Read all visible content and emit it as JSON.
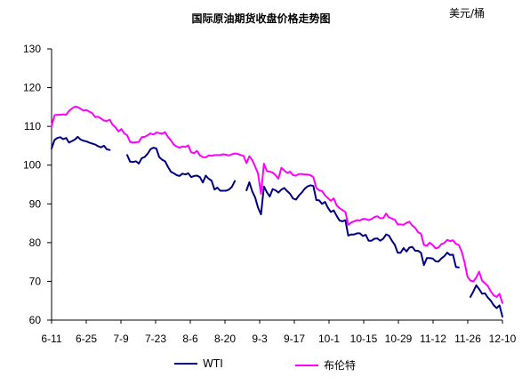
{
  "chart_data": {
    "type": "line",
    "title": "国际原油期货收盘价格走势图",
    "unit_label": "美元/桶",
    "ylim": [
      60,
      130
    ],
    "yticks": [
      60,
      70,
      80,
      90,
      100,
      110,
      120,
      130
    ],
    "x_tick_labels": [
      "6-11",
      "6-25",
      "7-9",
      "7-23",
      "8-6",
      "8-20",
      "9-3",
      "9-17",
      "10-1",
      "10-15",
      "10-29",
      "11-12",
      "11-26",
      "12-10"
    ],
    "legend_position": "bottom",
    "grid": false,
    "colors": {
      "wti": "#000080",
      "brent": "#ff00ff"
    },
    "series": [
      {
        "name": "WTI",
        "key": "wti",
        "points": [
          [
            0,
            104.3
          ],
          [
            1,
            106.5
          ],
          [
            2,
            107.0
          ],
          [
            3,
            107.2
          ],
          [
            4,
            106.7
          ],
          [
            5,
            107.0
          ],
          [
            6,
            105.8
          ],
          [
            8,
            106.6
          ],
          [
            9,
            107.3
          ],
          [
            10,
            106.6
          ],
          [
            11,
            106.3
          ],
          [
            12,
            106.1
          ],
          [
            13,
            105.8
          ],
          [
            15,
            105.3
          ],
          [
            16,
            104.9
          ],
          [
            17,
            104.6
          ],
          [
            18,
            105.0
          ],
          [
            19,
            104.1
          ],
          [
            20,
            103.9
          ],
          null,
          [
            26,
            102.6
          ],
          [
            27,
            100.9
          ],
          [
            28,
            100.8
          ],
          [
            29,
            101.0
          ],
          [
            30,
            100.4
          ],
          [
            31,
            101.8
          ],
          [
            32,
            102.1
          ],
          [
            33,
            102.9
          ],
          [
            34,
            104.1
          ],
          [
            35,
            104.5
          ],
          [
            36,
            104.3
          ],
          [
            37,
            102.1
          ],
          [
            38,
            101.4
          ],
          [
            39,
            101.0
          ],
          [
            40,
            99.6
          ],
          [
            41,
            98.3
          ],
          [
            42,
            97.9
          ],
          [
            43,
            97.4
          ],
          [
            44,
            97.2
          ],
          [
            45,
            97.8
          ],
          [
            46,
            97.6
          ],
          [
            47,
            97.9
          ],
          [
            48,
            96.9
          ],
          [
            49,
            97.2
          ],
          [
            50,
            97.3
          ],
          [
            51,
            96.9
          ],
          [
            52,
            95.5
          ],
          [
            53,
            97.3
          ],
          [
            54,
            96.5
          ],
          [
            55,
            96.0
          ],
          [
            56,
            93.7
          ],
          [
            57,
            94.2
          ],
          [
            58,
            93.4
          ],
          [
            59,
            93.4
          ],
          [
            60,
            93.4
          ],
          [
            61,
            93.7
          ],
          [
            62,
            94.4
          ],
          [
            63,
            95.9
          ],
          null,
          [
            67,
            93.5
          ],
          [
            68,
            95.6
          ],
          [
            69,
            93.2
          ],
          [
            70,
            91.6
          ],
          [
            71,
            89.0
          ],
          [
            72,
            87.3
          ],
          [
            73,
            94.5
          ],
          [
            74,
            93.0
          ],
          [
            75,
            91.9
          ],
          [
            76,
            93.8
          ],
          [
            77,
            93.5
          ],
          [
            78,
            92.9
          ],
          [
            79,
            93.7
          ],
          [
            80,
            94.1
          ],
          [
            81,
            93.3
          ],
          [
            82,
            92.6
          ],
          [
            83,
            91.4
          ],
          [
            84,
            91.1
          ],
          [
            85,
            92.1
          ],
          [
            86,
            92.9
          ],
          [
            87,
            93.9
          ],
          [
            88,
            94.5
          ],
          [
            89,
            94.8
          ],
          [
            90,
            94.6
          ],
          [
            91,
            91.0
          ],
          [
            92,
            90.9
          ],
          [
            93,
            90.0
          ],
          [
            94,
            90.5
          ],
          [
            95,
            89.0
          ],
          [
            96,
            87.9
          ],
          [
            97,
            88.3
          ],
          [
            98,
            86.9
          ],
          [
            99,
            85.7
          ],
          [
            100,
            85.5
          ],
          [
            101,
            85.8
          ],
          [
            102,
            81.8
          ],
          [
            103,
            82.1
          ],
          [
            104,
            82.1
          ],
          [
            105,
            82.4
          ],
          [
            106,
            82.4
          ],
          [
            107,
            81.7
          ],
          [
            108,
            82.0
          ],
          [
            109,
            80.5
          ],
          [
            110,
            80.5
          ],
          [
            111,
            81.0
          ],
          [
            112,
            81.1
          ],
          [
            113,
            80.5
          ],
          [
            114,
            81.0
          ],
          [
            115,
            82.1
          ],
          [
            116,
            81.8
          ],
          [
            117,
            80.5
          ],
          [
            118,
            79.4
          ],
          [
            119,
            77.4
          ],
          [
            120,
            77.4
          ],
          [
            121,
            78.6
          ],
          [
            122,
            77.7
          ],
          [
            123,
            78.7
          ],
          [
            124,
            78.9
          ],
          [
            125,
            77.9
          ],
          [
            126,
            77.9
          ],
          [
            127,
            77.4
          ],
          [
            128,
            74.2
          ],
          [
            129,
            76.0
          ],
          [
            130,
            76.0
          ],
          [
            131,
            75.9
          ],
          [
            132,
            75.2
          ],
          [
            133,
            75.1
          ],
          [
            134,
            75.9
          ],
          [
            135,
            76.5
          ],
          [
            136,
            77.4
          ],
          [
            137,
            76.8
          ],
          [
            138,
            76.9
          ],
          [
            139,
            73.7
          ],
          [
            140,
            73.6
          ],
          null,
          [
            144,
            66.0
          ],
          [
            145,
            67.4
          ],
          [
            146,
            69.0
          ],
          [
            147,
            68.0
          ],
          [
            148,
            66.8
          ],
          [
            149,
            66.9
          ],
          [
            150,
            65.8
          ],
          [
            151,
            65.0
          ],
          [
            152,
            63.8
          ],
          [
            153,
            63.1
          ],
          [
            154,
            63.8
          ],
          [
            155,
            60.9
          ]
        ]
      },
      {
        "name": "布伦特",
        "key": "brent",
        "points": [
          [
            0,
            110.0
          ],
          [
            1,
            112.9
          ],
          [
            2,
            113.0
          ],
          [
            3,
            113.0
          ],
          [
            4,
            113.1
          ],
          [
            5,
            113.0
          ],
          [
            6,
            114.0
          ],
          [
            7,
            114.6
          ],
          [
            8,
            115.1
          ],
          [
            9,
            115.0
          ],
          [
            10,
            114.5
          ],
          [
            11,
            114.1
          ],
          [
            12,
            114.2
          ],
          [
            13,
            113.8
          ],
          [
            14,
            113.4
          ],
          [
            15,
            112.4
          ],
          [
            16,
            112.5
          ],
          [
            17,
            112.0
          ],
          [
            18,
            111.5
          ],
          [
            19,
            111.4
          ],
          [
            20,
            111.7
          ],
          [
            21,
            110.4
          ],
          [
            22,
            109.7
          ],
          [
            23,
            108.7
          ],
          [
            24,
            109.3
          ],
          [
            25,
            108.2
          ],
          [
            26,
            107.7
          ],
          [
            27,
            106.0
          ],
          [
            28,
            105.8
          ],
          [
            29,
            105.9
          ],
          [
            30,
            106.0
          ],
          [
            31,
            107.2
          ],
          [
            32,
            107.3
          ],
          [
            33,
            107.7
          ],
          [
            34,
            108.2
          ],
          [
            35,
            107.9
          ],
          [
            36,
            108.4
          ],
          [
            37,
            108.3
          ],
          [
            38,
            108.1
          ],
          [
            39,
            108.5
          ],
          [
            40,
            107.3
          ],
          [
            41,
            106.4
          ],
          [
            42,
            105.3
          ],
          [
            43,
            104.8
          ],
          [
            44,
            104.5
          ],
          [
            45,
            104.8
          ],
          [
            46,
            104.7
          ],
          [
            47,
            105.1
          ],
          [
            48,
            103.3
          ],
          [
            49,
            103.1
          ],
          [
            50,
            103.7
          ],
          [
            51,
            102.5
          ],
          [
            52,
            102.1
          ],
          [
            53,
            102.0
          ],
          [
            54,
            102.5
          ],
          [
            55,
            102.4
          ],
          [
            56,
            102.6
          ],
          [
            57,
            102.6
          ],
          [
            58,
            102.6
          ],
          [
            59,
            102.8
          ],
          [
            60,
            102.7
          ],
          [
            61,
            102.5
          ],
          [
            62,
            102.8
          ],
          [
            63,
            103.0
          ],
          [
            64,
            102.9
          ],
          [
            65,
            102.6
          ],
          [
            66,
            102.4
          ],
          [
            67,
            100.5
          ],
          [
            68,
            102.3
          ],
          [
            69,
            101.3
          ],
          [
            70,
            99.6
          ],
          [
            71,
            97.8
          ],
          [
            72,
            92.6
          ],
          [
            73,
            100.4
          ],
          [
            74,
            98.5
          ],
          [
            75,
            98.3
          ],
          [
            76,
            98.1
          ],
          [
            77,
            97.4
          ],
          [
            78,
            96.5
          ],
          [
            79,
            99.3
          ],
          [
            80,
            98.6
          ],
          [
            81,
            98.0
          ],
          [
            82,
            98.3
          ],
          [
            83,
            97.4
          ],
          [
            84,
            97.3
          ],
          [
            85,
            97.7
          ],
          [
            86,
            97.7
          ],
          [
            87,
            97.6
          ],
          [
            88,
            97.6
          ],
          [
            89,
            97.4
          ],
          [
            90,
            96.9
          ],
          [
            91,
            94.1
          ],
          [
            92,
            93.5
          ],
          [
            93,
            93.3
          ],
          [
            94,
            92.2
          ],
          [
            95,
            91.5
          ],
          [
            96,
            90.8
          ],
          [
            97,
            91.4
          ],
          [
            98,
            89.6
          ],
          [
            99,
            88.9
          ],
          [
            100,
            88.4
          ],
          [
            101,
            87.9
          ],
          [
            102,
            84.6
          ],
          [
            103,
            85.2
          ],
          [
            104,
            85.5
          ],
          [
            105,
            85.8
          ],
          [
            106,
            85.7
          ],
          [
            107,
            86.1
          ],
          [
            108,
            86.1
          ],
          [
            109,
            85.8
          ],
          [
            110,
            86.1
          ],
          [
            111,
            86.6
          ],
          [
            112,
            86.8
          ],
          [
            113,
            86.3
          ],
          [
            114,
            86.3
          ],
          [
            115,
            87.5
          ],
          [
            116,
            86.5
          ],
          [
            117,
            86.2
          ],
          [
            118,
            85.9
          ],
          [
            119,
            84.7
          ],
          [
            120,
            84.7
          ],
          [
            121,
            84.6
          ],
          [
            122,
            85.1
          ],
          [
            123,
            85.4
          ],
          [
            124,
            84.4
          ],
          [
            125,
            83.8
          ],
          [
            126,
            82.7
          ],
          [
            127,
            82.3
          ],
          [
            128,
            79.4
          ],
          [
            129,
            79.2
          ],
          [
            130,
            80.0
          ],
          [
            131,
            79.4
          ],
          [
            132,
            78.5
          ],
          [
            133,
            78.7
          ],
          [
            134,
            79.6
          ],
          [
            135,
            79.9
          ],
          [
            136,
            80.7
          ],
          [
            137,
            80.4
          ],
          [
            138,
            80.6
          ],
          [
            139,
            79.7
          ],
          [
            140,
            79.4
          ],
          [
            141,
            77.7
          ],
          [
            142,
            74.8
          ],
          [
            143,
            71.2
          ],
          [
            144,
            70.2
          ],
          [
            145,
            70.0
          ],
          [
            146,
            71.0
          ],
          [
            147,
            72.5
          ],
          [
            148,
            70.2
          ],
          [
            149,
            69.5
          ],
          [
            150,
            68.8
          ],
          [
            151,
            67.4
          ],
          [
            152,
            66.4
          ],
          [
            153,
            66.0
          ],
          [
            154,
            66.8
          ],
          [
            155,
            64.4
          ]
        ]
      }
    ]
  }
}
